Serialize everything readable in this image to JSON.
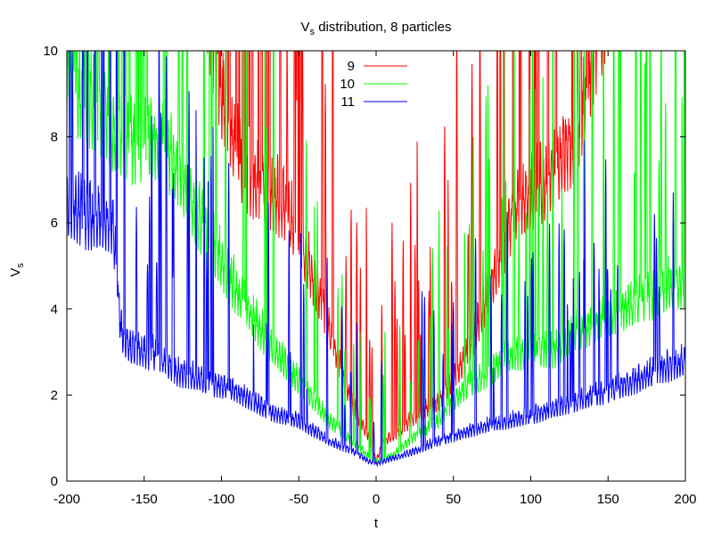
{
  "chart_data": {
    "type": "line",
    "title": "V",
    "title_sub": "s",
    "title_rest": " distribution, 8 particles",
    "xlabel": "t",
    "ylabel": "V",
    "ylabel_sub": "s",
    "xlim": [
      -200,
      200
    ],
    "ylim": [
      0,
      10
    ],
    "xticks": [
      -200,
      -150,
      -100,
      -50,
      0,
      50,
      100,
      150,
      200
    ],
    "yticks": [
      0,
      2,
      4,
      6,
      8,
      10
    ],
    "grid": false,
    "legend_position": "top-center",
    "series": [
      {
        "name": "9",
        "color": "#ff0000",
        "x": [
          -200,
          -175,
          -150,
          -130,
          -110,
          -100,
          -90,
          -80,
          -60,
          -45,
          -30,
          -15,
          -5,
          0,
          5,
          15,
          25,
          40,
          55,
          70,
          90,
          110,
          130,
          150,
          170,
          185,
          200
        ],
        "y": [
          10,
          10,
          10,
          10,
          10,
          7.8,
          6.6,
          6.0,
          5.6,
          4.5,
          3.0,
          1.5,
          0.9,
          0.4,
          0.8,
          1.0,
          1.3,
          1.6,
          2.3,
          3.5,
          5.5,
          6.0,
          7.0,
          10,
          10,
          10,
          10
        ],
        "spikiness": 1.0
      },
      {
        "name": "10",
        "color": "#00ff00",
        "x": [
          -200,
          -185,
          -175,
          -170,
          -160,
          -150,
          -140,
          -130,
          -110,
          -90,
          -70,
          -50,
          -30,
          -15,
          -5,
          0,
          10,
          25,
          40,
          55,
          70,
          85,
          100,
          115,
          130,
          150,
          170,
          190,
          200
        ],
        "y": [
          8.0,
          7.6,
          7.5,
          7.0,
          6.9,
          6.8,
          6.9,
          6.4,
          5.0,
          3.8,
          2.8,
          2.0,
          1.2,
          0.8,
          0.5,
          0.4,
          0.5,
          0.9,
          1.2,
          1.8,
          2.1,
          2.5,
          2.6,
          2.6,
          3.0,
          3.3,
          3.6,
          3.9,
          4.0
        ],
        "spikiness": 0.8
      },
      {
        "name": "11",
        "color": "#0000ff",
        "x": [
          -200,
          -185,
          -170,
          -165,
          -160,
          -150,
          -140,
          -130,
          -110,
          -90,
          -70,
          -50,
          -30,
          -15,
          -5,
          0,
          10,
          25,
          40,
          55,
          70,
          85,
          100,
          120,
          140,
          160,
          180,
          200
        ],
        "y": [
          5.6,
          5.3,
          5.2,
          3.0,
          2.7,
          2.6,
          2.5,
          2.2,
          2.0,
          1.8,
          1.4,
          1.2,
          0.8,
          0.6,
          0.4,
          0.35,
          0.45,
          0.6,
          0.8,
          0.95,
          1.1,
          1.2,
          1.3,
          1.5,
          1.7,
          1.9,
          2.2,
          2.4
        ],
        "spikiness": 0.7
      }
    ]
  }
}
